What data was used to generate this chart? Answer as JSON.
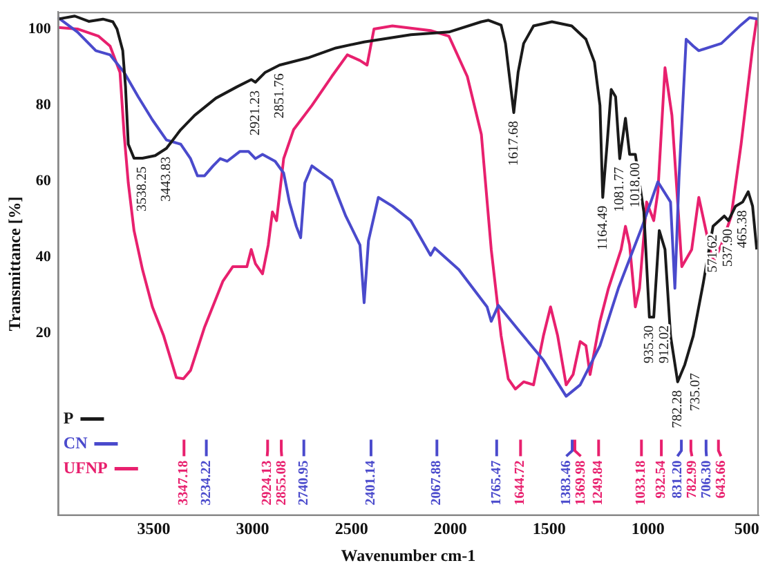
{
  "chart_data": {
    "type": "line",
    "xlabel": "Wavenumber cm-1",
    "ylabel": "Transmittance [%]",
    "xlim": [
      3985,
      440
    ],
    "xticks": [
      3500,
      3000,
      2500,
      2000,
      1500,
      1000,
      500
    ],
    "ylim": [
      -28,
      104.5
    ],
    "yticks": [
      20,
      40,
      60,
      80,
      100
    ],
    "grid": false,
    "legend": "bottom left",
    "marker": "none",
    "line_style": "solid",
    "series": [
      {
        "name": "P",
        "color": "#1a1a1a",
        "x": [
          3985,
          3900,
          3829,
          3757,
          3707,
          3686,
          3657,
          3643,
          3629,
          3600,
          3557,
          3493,
          3436,
          3364,
          3293,
          3186,
          3079,
          3007,
          2986,
          2936,
          2864,
          2721,
          2579,
          2436,
          2200,
          2007,
          1843,
          1807,
          1743,
          1721,
          1679,
          1657,
          1629,
          1579,
          1486,
          1386,
          1314,
          1271,
          1243,
          1229,
          1207,
          1186,
          1164,
          1143,
          1114,
          1093,
          1064,
          1043,
          1021,
          993,
          971,
          943,
          914,
          886,
          850,
          814,
          771,
          721,
          671,
          614,
          593,
          557,
          521,
          493,
          471,
          450
        ],
        "values": [
          102.6,
          103.4,
          102,
          102.6,
          101.9,
          100,
          94.3,
          84.8,
          69.7,
          66,
          66,
          66.7,
          68.6,
          73.5,
          77.3,
          81.8,
          84.8,
          86.7,
          86,
          88.6,
          90.5,
          92.4,
          95,
          96.6,
          98.5,
          99.2,
          101.9,
          102.3,
          101,
          96.2,
          78,
          88.6,
          96.2,
          100.8,
          101.9,
          100.8,
          97.3,
          91.3,
          79.9,
          55.7,
          69.7,
          84.1,
          82.2,
          65.9,
          76.5,
          67,
          67,
          59.5,
          51.9,
          24.2,
          24.2,
          47,
          42,
          19.3,
          7.2,
          11.7,
          19.3,
          33,
          48.1,
          50.8,
          49.6,
          53.4,
          54.5,
          57.2,
          53.4,
          42
        ]
      },
      {
        "name": "CN",
        "color": "#4a4acc",
        "x": [
          3985,
          3886,
          3793,
          3721,
          3650,
          3579,
          3507,
          3436,
          3364,
          3314,
          3279,
          3243,
          3200,
          3164,
          3129,
          3064,
          3021,
          2986,
          2950,
          2886,
          2843,
          2814,
          2779,
          2757,
          2736,
          2700,
          2600,
          2529,
          2457,
          2436,
          2414,
          2364,
          2293,
          2200,
          2100,
          2079,
          1957,
          1814,
          1793,
          1757,
          1650,
          1529,
          1414,
          1343,
          1243,
          1150,
          1029,
          950,
          886,
          864,
          843,
          807,
          771,
          743,
          629,
          529,
          486,
          440
        ],
        "values": [
          103,
          99.2,
          94.3,
          93.2,
          88.6,
          82.2,
          76.1,
          70.8,
          69.7,
          65.9,
          61.4,
          61.4,
          64,
          65.9,
          65.2,
          67.8,
          67.8,
          65.9,
          67,
          65.2,
          62.1,
          54.5,
          48.1,
          45.1,
          59.5,
          64,
          60.2,
          50.8,
          43.2,
          28,
          44.3,
          55.7,
          53.4,
          49.6,
          40.5,
          42.4,
          36.7,
          26.9,
          23.1,
          27.3,
          20.5,
          12.9,
          3.4,
          6.4,
          16.7,
          31.8,
          48.1,
          59.8,
          54.5,
          31.8,
          61,
          97.3,
          95.5,
          94.3,
          96.2,
          101.1,
          103,
          102.6
        ]
      },
      {
        "name": "UFNP",
        "color": "#e8206e",
        "x": [
          3985,
          3886,
          3779,
          3721,
          3671,
          3650,
          3629,
          3600,
          3557,
          3507,
          3450,
          3386,
          3350,
          3314,
          3243,
          3150,
          3100,
          3029,
          3007,
          2986,
          2950,
          2921,
          2900,
          2879,
          2843,
          2793,
          2700,
          2600,
          2521,
          2457,
          2421,
          2386,
          2293,
          2100,
          2007,
          1914,
          1843,
          1793,
          1743,
          1707,
          1671,
          1629,
          1579,
          1529,
          1493,
          1457,
          1414,
          1379,
          1343,
          1314,
          1293,
          1243,
          1200,
          1136,
          1114,
          1093,
          1064,
          1043,
          1007,
          971,
          950,
          914,
          879,
          850,
          829,
          779,
          743,
          707,
          671,
          629,
          579,
          529,
          471,
          450
        ],
        "values": [
          100.4,
          100,
          98.1,
          95.5,
          88.6,
          72.3,
          59.5,
          47,
          36.7,
          26.9,
          19.3,
          8.3,
          8,
          10.2,
          21.6,
          33.7,
          37.5,
          37.5,
          42,
          38.3,
          35.6,
          43.2,
          51.9,
          49.6,
          65.9,
          73.5,
          79.9,
          87.5,
          93.2,
          91.7,
          90.5,
          100,
          100.8,
          99.6,
          98.1,
          87.5,
          72.3,
          42,
          19.3,
          8,
          5.3,
          7.2,
          6.4,
          19.3,
          26.9,
          19.3,
          6.4,
          9.1,
          17.8,
          16.7,
          9.1,
          23.1,
          31.8,
          42,
          48.1,
          43.2,
          26.9,
          31.8,
          54.5,
          49.6,
          57.2,
          89.8,
          77.3,
          54.5,
          37.5,
          42,
          55.7,
          47,
          38.6,
          43.2,
          50.8,
          69.7,
          95.1,
          102.6
        ]
      }
    ],
    "annotations": [
      {
        "text": "3538.25",
        "x": 3557,
        "y": 66
      },
      {
        "text": "3443.83",
        "x": 3436,
        "y": 68.6
      },
      {
        "text": "2921.23",
        "x": 2986,
        "y": 86
      },
      {
        "text": "2851.76",
        "x": 2864,
        "y": 90.5
      },
      {
        "text": "1617.68",
        "x": 1679,
        "y": 78
      },
      {
        "text": "1164.49",
        "x": 1229,
        "y": 55.7
      },
      {
        "text": "1081.77",
        "x": 1143,
        "y": 65.9
      },
      {
        "text": "1018.00",
        "x": 1064,
        "y": 67
      },
      {
        "text": "935.30",
        "x": 993,
        "y": 24.2
      },
      {
        "text": "912.02",
        "x": 971,
        "y": 24.2
      },
      {
        "text": "782.28",
        "x": 850,
        "y": 7.2
      },
      {
        "text": "735.07",
        "x": 814,
        "y": 11.7
      },
      {
        "text": "571.62",
        "x": 671,
        "y": 48.1
      },
      {
        "text": "537.90",
        "x": 593,
        "y": 49.6
      },
      {
        "text": "465.38",
        "x": 521,
        "y": 54.5
      }
    ],
    "ref_lines": [
      {
        "axis": "x",
        "value": 3347.18,
        "label": "3347.18",
        "color": "#e8206e"
      },
      {
        "axis": "x",
        "value": 3234.22,
        "label": "3234.22",
        "color": "#4a4acc"
      },
      {
        "axis": "x",
        "value": 2924.13,
        "label": "2924.13",
        "color": "#e8206e"
      },
      {
        "axis": "x",
        "value": 2855.08,
        "label": "2855.08",
        "color": "#e8206e"
      },
      {
        "axis": "x",
        "value": 2740.95,
        "label": "2740.95",
        "color": "#4a4acc"
      },
      {
        "axis": "x",
        "value": 2401.14,
        "label": "2401.14",
        "color": "#4a4acc"
      },
      {
        "axis": "x",
        "value": 2067.88,
        "label": "2067.88",
        "color": "#4a4acc"
      },
      {
        "axis": "x",
        "value": 1765.47,
        "label": "1765.47",
        "color": "#4a4acc"
      },
      {
        "axis": "x",
        "value": 1644.72,
        "label": "1644.72",
        "color": "#e8206e"
      },
      {
        "axis": "x",
        "value": 1383.46,
        "label": "1383.46",
        "color": "#4a4acc"
      },
      {
        "axis": "x",
        "value": 1369.98,
        "label": "1369.98",
        "color": "#e8206e"
      },
      {
        "axis": "x",
        "value": 1249.84,
        "label": "1249.84",
        "color": "#e8206e"
      },
      {
        "axis": "x",
        "value": 1033.18,
        "label": "1033.18",
        "color": "#e8206e"
      },
      {
        "axis": "x",
        "value": 932.54,
        "label": "932.54",
        "color": "#e8206e"
      },
      {
        "axis": "x",
        "value": 831.2,
        "label": "831.20",
        "color": "#4a4acc"
      },
      {
        "axis": "x",
        "value": 782.99,
        "label": "782.99",
        "color": "#e8206e"
      },
      {
        "axis": "x",
        "value": 706.3,
        "label": "706.30",
        "color": "#4a4acc"
      },
      {
        "axis": "x",
        "value": 643.66,
        "label": "643.66",
        "color": "#e8206e"
      }
    ]
  }
}
